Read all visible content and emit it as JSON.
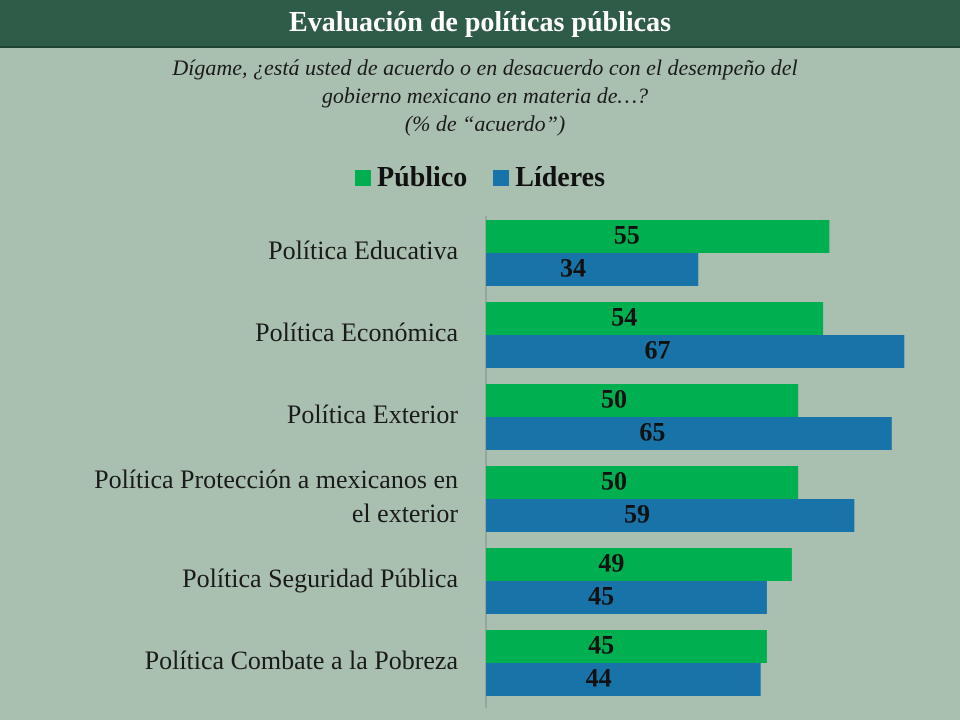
{
  "header": {
    "title": "Evaluación de políticas públicas"
  },
  "subtitle": {
    "line1": "Dígame, ¿está usted de acuerdo o en desacuerdo con el desempeño del",
    "line2": "gobierno mexicano en materia de…?",
    "line3": "(% de “acuerdo”)"
  },
  "colors": {
    "publico": "#00b050",
    "lideres": "#1874a8",
    "background": "#a9bfaf",
    "title_bar": "#2f5b49"
  },
  "chart_data": {
    "type": "bar",
    "orientation": "horizontal",
    "categories": [
      [
        "Política Educativa"
      ],
      [
        "Política Económica"
      ],
      [
        "Política Exterior"
      ],
      [
        "Política Protección a mexicanos en",
        "el exterior"
      ],
      [
        "Política Seguridad Pública"
      ],
      [
        "Política Combate a la Pobreza"
      ]
    ],
    "series": [
      {
        "name": "Público",
        "color": "#00b050",
        "values": [
          55,
          54,
          50,
          50,
          49,
          45
        ]
      },
      {
        "name": "Líderes",
        "color": "#1874a8",
        "values": [
          34,
          67,
          65,
          59,
          45,
          44
        ]
      }
    ],
    "xlim": [
      0,
      70
    ],
    "legend": "top-center",
    "grid": false,
    "data_labels": true
  }
}
